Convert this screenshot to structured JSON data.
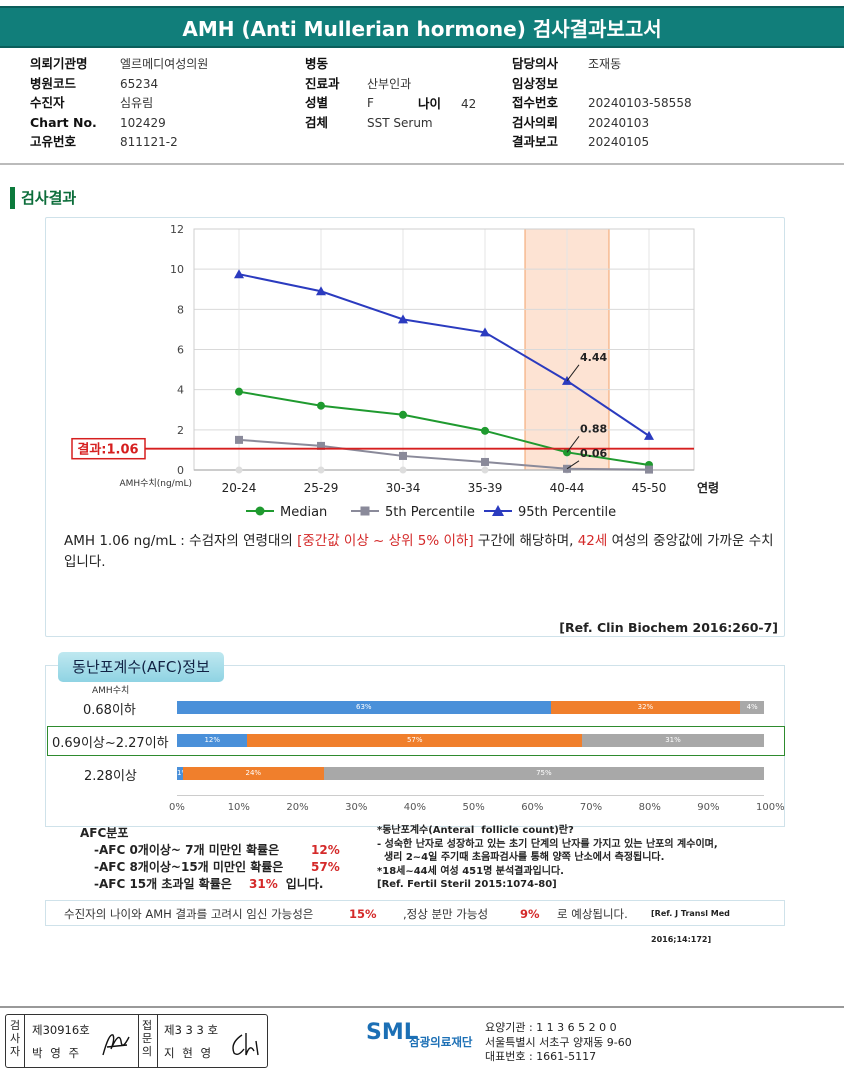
{
  "title": "AMH (Anti Mullerian hormone) 검사결과보고서",
  "info": {
    "col1": [
      {
        "label": "의뢰기관명",
        "value": "엘르메디여성의원"
      },
      {
        "label": "병원코드",
        "value": "65234"
      },
      {
        "label": "수진자",
        "value": "심유림"
      },
      {
        "label": "Chart No.",
        "value": "102429"
      },
      {
        "label": "고유번호",
        "value": "811121-2"
      }
    ],
    "col2": [
      {
        "label": "병동",
        "value": ""
      },
      {
        "label": "진료과",
        "value": "산부인과"
      },
      {
        "label": "성별",
        "value": "F"
      },
      {
        "label": "검체",
        "value": "SST Serum"
      }
    ],
    "age_label": "나이",
    "age_value": "42",
    "col3": [
      {
        "label": "담당의사",
        "value": "조재동"
      },
      {
        "label": "임상정보",
        "value": ""
      },
      {
        "label": "접수번호",
        "value": "20240103-58558"
      },
      {
        "label": "검사의뢰",
        "value": "20240103"
      },
      {
        "label": "결과보고",
        "value": "20240105"
      }
    ]
  },
  "section_title": "검사결과",
  "result_label": "결과:1.06",
  "amh_axis_label": "AMH수치(ng/mL)",
  "age_axis_label": "연령",
  "chart_data": {
    "type": "line",
    "categories": [
      "20-24",
      "25-29",
      "30-34",
      "35-39",
      "40-44",
      "45-50"
    ],
    "ylim": [
      0,
      12
    ],
    "yticks": [
      0,
      2,
      4,
      6,
      8,
      10,
      12
    ],
    "ylabel": "AMH수치(ng/mL)",
    "xlabel": "연령",
    "grid": true,
    "legend": "bottom",
    "highlight_category": "40-44",
    "result_line": 1.06,
    "series": [
      {
        "name": "Median",
        "color": "#1f9a2f",
        "marker": "circle",
        "values": [
          3.9,
          3.2,
          2.75,
          1.95,
          0.88,
          0.25
        ]
      },
      {
        "name": "5th Percentile",
        "color": "#8a8a9a",
        "marker": "square",
        "values": [
          1.5,
          1.2,
          0.7,
          0.4,
          0.06,
          0.02
        ]
      },
      {
        "name": "95th Percentile",
        "color": "#2b3bbf",
        "marker": "triangle",
        "values": [
          9.75,
          8.9,
          7.5,
          6.85,
          4.44,
          1.7
        ]
      }
    ],
    "annotations": [
      {
        "category": "40-44",
        "value": 4.44,
        "text": "4.44"
      },
      {
        "category": "40-44",
        "value": 0.88,
        "text": "0.88"
      },
      {
        "category": "40-44",
        "value": 0.06,
        "text": "0.06"
      }
    ]
  },
  "description": {
    "part1": "AMH   1.06 ng/mL : 수검자의 연령대의 ",
    "red1": "[중간값 이상 ~ 상위 5% 이하]",
    "part2": "  구간에 해당하며, ",
    "red2": "42세",
    "part3": " 여성의 중앙값에 가까운 수치입니다."
  },
  "ref1": "[Ref. Clin Biochem 2016:260-7]",
  "afc_tab": "동난포계수(AFC)정보",
  "afc_axis_header": "AMH수치",
  "afc_bars": {
    "colors": {
      "low": "#4a90d9",
      "mid": "#f07f2c",
      "high": "#a8a8a8"
    },
    "rows": [
      {
        "label": "0.68이하",
        "segments": [
          63,
          32,
          4
        ],
        "labels": [
          "63%",
          "32%",
          "4%"
        ]
      },
      {
        "label": "0.69이상~2.27이하",
        "segments": [
          12,
          57,
          31
        ],
        "labels": [
          "12%",
          "57%",
          "31%"
        ]
      },
      {
        "label": "2.28이상",
        "segments": [
          1,
          24,
          75
        ],
        "labels": [
          "1%",
          "24%",
          "75%"
        ]
      }
    ],
    "ticks": [
      "0%",
      "10%",
      "20%",
      "30%",
      "40%",
      "50%",
      "60%",
      "70%",
      "80%",
      "90%",
      "100%"
    ]
  },
  "afc_summary": {
    "title": "AFC분포",
    "rows": [
      {
        "text": "-AFC 0개이상~ 7개 미만인 확률은",
        "value": "12%",
        "tail": ""
      },
      {
        "text": "-AFC 8개이상~15개 미만인 확률은",
        "value": "57%",
        "tail": ""
      },
      {
        "text": "-AFC 15개 초과일 확률은",
        "value": "31%",
        "tail": "입니다."
      }
    ]
  },
  "afc_note": [
    "*동난포계수(Anteral  follicle count)란?",
    "- 성숙한 난자로 성장하고 있는 초기 단계의 난자를 가지고 있는 난포의 계수이며,",
    "  생리 2~4일 주기때 초음파검사를 통해 양쪽 난소에서 측정됩니다.",
    "*18세~44세 여성 451명 분석결과입니다.",
    "[Ref. Fertil Steril 2015:1074-80]"
  ],
  "probability": {
    "part1": "수진자의  나이와 AMH 결과를 고려시 임신 가능성은",
    "value1": "15%",
    "part2": ",정상 분만 가능성",
    "value2": "9%",
    "part3": "로 예상됩니다.",
    "ref": "[Ref. J Transl Med 2016;14:172]"
  },
  "stamp": {
    "v1": "검사자",
    "c1": "제30916호",
    "n1": "박 영 주",
    "v2": "접문의",
    "c2": "제3 3 3 호",
    "n2": "지 현 영"
  },
  "org": {
    "logo": "SML",
    "name": "삼광의료재단",
    "code": "요양기관 : 1 1 3 6 5 2 0 0",
    "address": "서울특별시 서초구 양재동 9-60",
    "phone": "대표번호 : 1661-5117"
  }
}
